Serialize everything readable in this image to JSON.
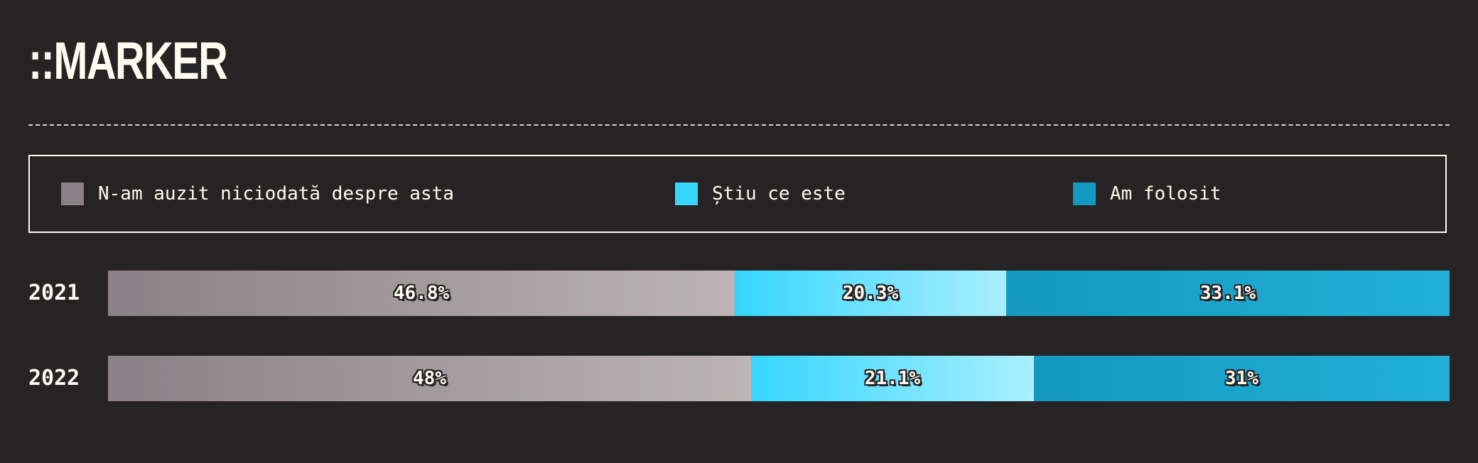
{
  "title": "::MARKER",
  "colors": {
    "background": "#262325",
    "text": "#fffbef",
    "never_heard": "#8a8085",
    "know_what_it_is": "#36d6ff",
    "used_it": "#1399c0"
  },
  "legend": [
    {
      "label": "N-am auzit niciodată despre asta",
      "color": "#8a8085"
    },
    {
      "label": "Știu ce este",
      "color": "#36d6ff"
    },
    {
      "label": "Am folosit",
      "color": "#1399c0"
    }
  ],
  "chart_data": {
    "type": "bar",
    "orientation": "horizontal",
    "stacked": true,
    "normalized": true,
    "title": "::MARKER",
    "categories": [
      "2021",
      "2022"
    ],
    "series": [
      {
        "name": "N-am auzit niciodată despre asta",
        "values": [
          46.8,
          48
        ],
        "labels": [
          "46.8%",
          "48%"
        ]
      },
      {
        "name": "Știu ce este",
        "values": [
          20.3,
          21.1
        ],
        "labels": [
          "20.3%",
          "21.1%"
        ]
      },
      {
        "name": "Am folosit",
        "values": [
          33.1,
          31
        ],
        "labels": [
          "33.1%",
          "31%"
        ]
      }
    ],
    "legend_position": "top",
    "grid": false
  }
}
